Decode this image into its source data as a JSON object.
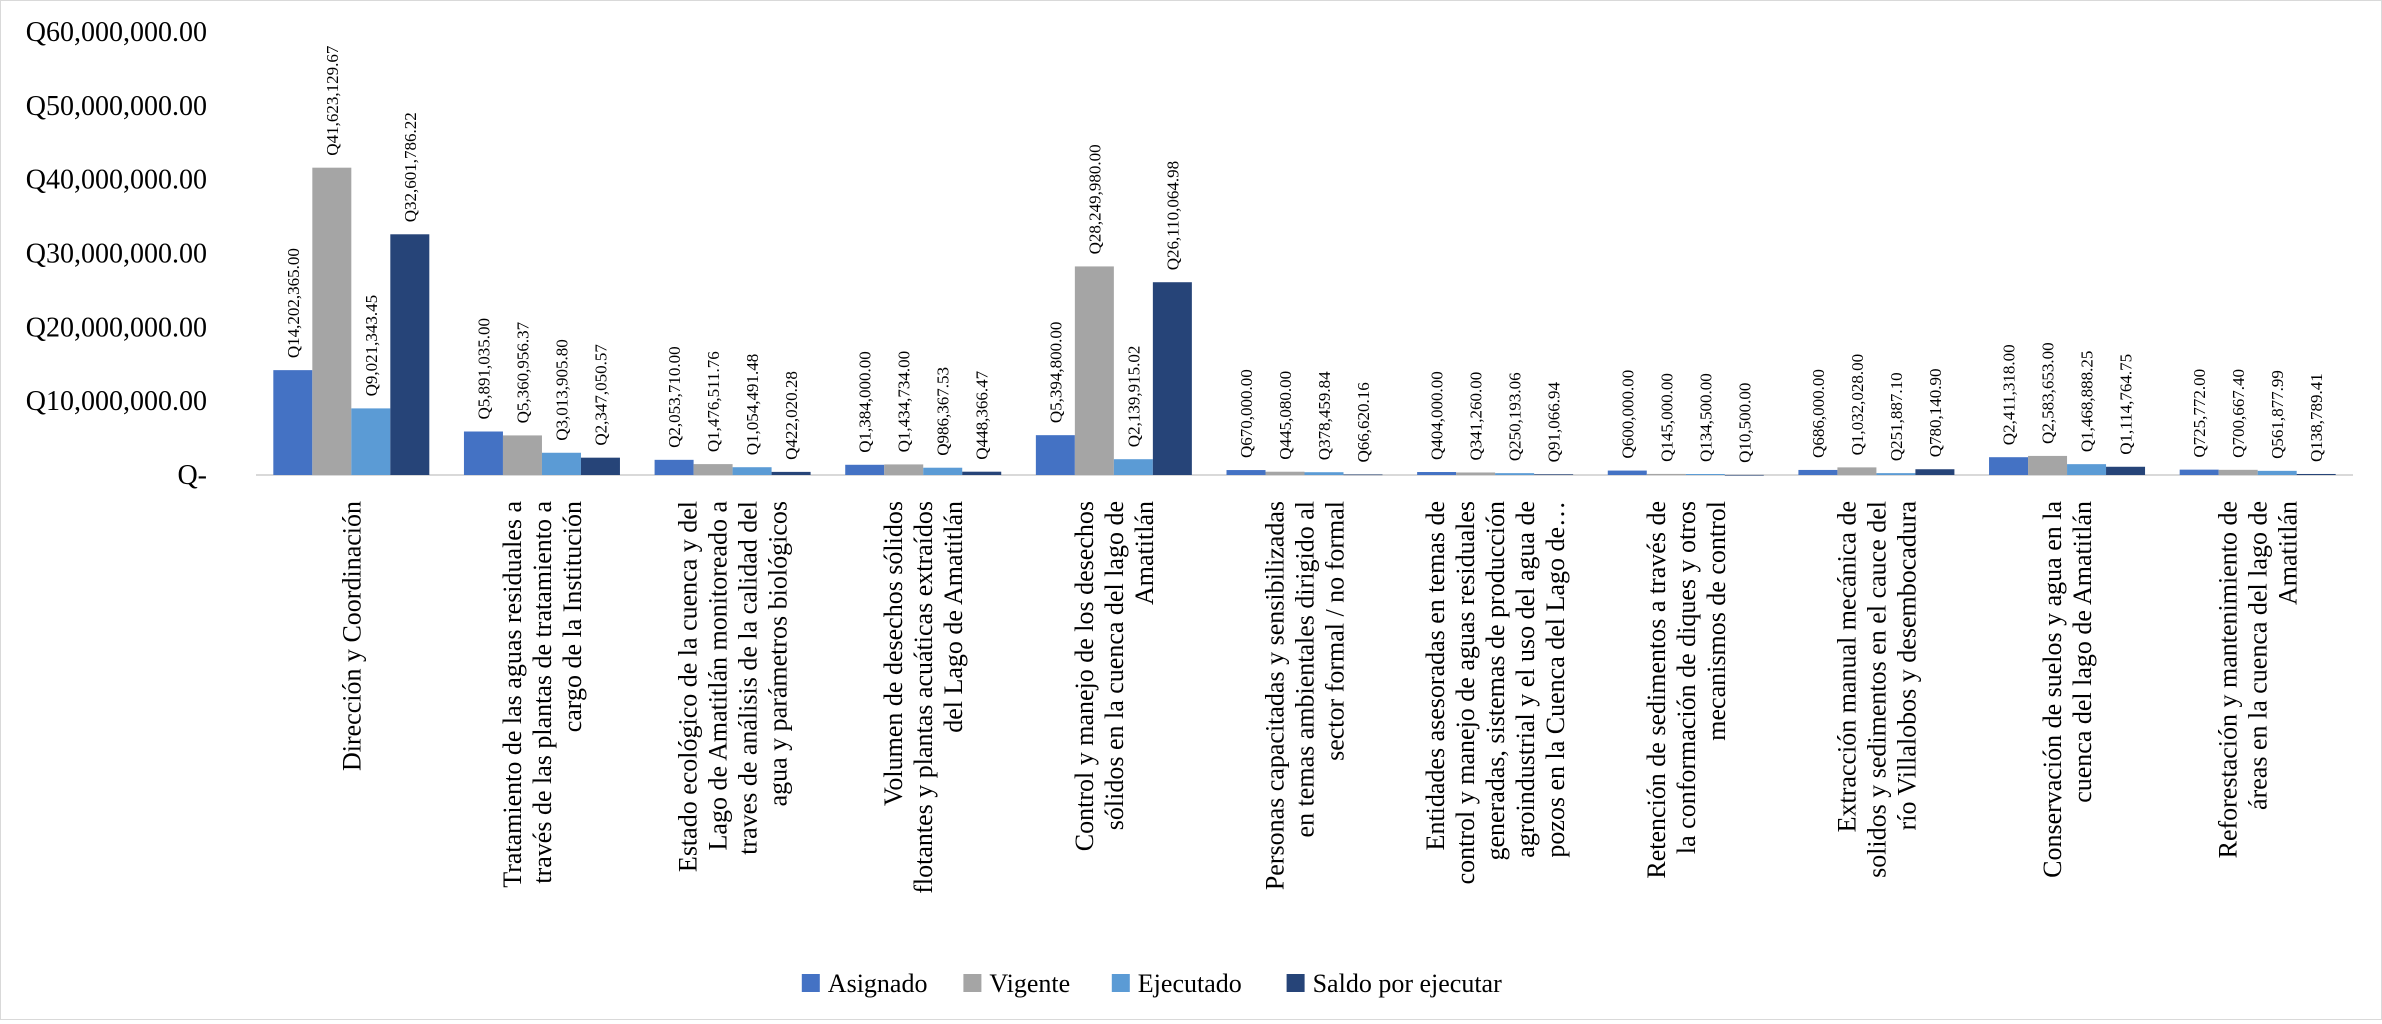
{
  "chart_data": {
    "type": "bar",
    "title": "",
    "xlabel": "",
    "ylabel": "",
    "ylim": [
      0,
      60000000
    ],
    "y_ticks": [
      0,
      10000000,
      20000000,
      30000000,
      40000000,
      50000000,
      60000000
    ],
    "y_tick_labels": [
      "Q-",
      "Q10,000,000.00",
      "Q20,000,000.00",
      "Q30,000,000.00",
      "Q40,000,000.00",
      "Q50,000,000.00",
      "Q60,000,000.00"
    ],
    "grid": false,
    "legend_position": "bottom-center",
    "categories": [
      [
        "Dirección y Coordinación"
      ],
      [
        "Tratamiento de las aguas residuales a",
        "través de las plantas de tratamiento a",
        "cargo de la Institución"
      ],
      [
        "Estado ecológico de la cuenca y del",
        "Lago de Amatitlán monitoreado a",
        "traves de análisis de la calidad del",
        "agua y parámetros biológicos"
      ],
      [
        "Volumen de desechos sólidos",
        "flotantes y plantas acuáticas extraídos",
        "del Lago de Amatitlán"
      ],
      [
        "Control y manejo de los desechos",
        "sólidos en la cuenca del lago de",
        "Amatitlán"
      ],
      [
        "Personas capacitadas y sensibilizadas",
        "en temas ambientales dirigido al",
        "sector formal / no formal"
      ],
      [
        "Entidades asesoradas en temas de",
        "control y manejo de aguas residuales",
        "generadas, sistemas de producción",
        "agroindustrial y el uso del agua de",
        "pozos en la Cuenca del Lago de…"
      ],
      [
        "Retención de sedimentos a través de",
        "la conformación de diques y otros",
        "mecanismos de control"
      ],
      [
        "Extracción manual  mecánica de",
        "solidos y sedimentos en el cauce del",
        "río Villalobos y desembocadura"
      ],
      [
        "Conservación de suelos y agua en la",
        "cuenca del lago de Amatitlán"
      ],
      [
        "Reforestación y mantenimiento de",
        "áreas en la cuenca del lago de",
        "Amatitlán"
      ]
    ],
    "series": [
      {
        "name": "Asignado",
        "color": "#4472c4",
        "values": [
          14202365.0,
          5891035.0,
          2053710.0,
          1384000.0,
          5394800.0,
          670000.0,
          404000.0,
          600000.0,
          686000.0,
          2411318.0,
          725772.0
        ],
        "labels": [
          "Q14,202,365.00",
          "Q5,891,035.00",
          "Q2,053,710.00",
          "Q1,384,000.00",
          "Q5,394,800.00",
          "Q670,000.00",
          "Q404,000.00",
          "Q600,000.00",
          "Q686,000.00",
          "Q2,411,318.00",
          "Q725,772.00"
        ]
      },
      {
        "name": "Vigente",
        "color": "#a5a5a5",
        "values": [
          41623129.67,
          5360956.37,
          1476511.76,
          1434734.0,
          28249980.0,
          445080.0,
          341260.0,
          145000.0,
          1032028.0,
          2583653.0,
          700667.4
        ],
        "labels": [
          "Q41,623,129.67",
          "Q5,360,956.37",
          "Q1,476,511.76",
          "Q1,434,734.00",
          "Q28,249,980.00",
          "Q445,080.00",
          "Q341,260.00",
          "Q145,000.00",
          "Q1,032,028.00",
          "Q2,583,653.00",
          "Q700,667.40"
        ]
      },
      {
        "name": "Ejecutado",
        "color": "#5b9bd5",
        "values": [
          9021343.45,
          3013905.8,
          1054491.48,
          986367.53,
          2139915.02,
          378459.84,
          250193.06,
          134500.0,
          251887.1,
          1468888.25,
          561877.99
        ],
        "labels": [
          "Q9,021,343.45",
          "Q3,013,905.80",
          "Q1,054,491.48",
          "Q986,367.53",
          "Q2,139,915.02",
          "Q378,459.84",
          "Q250,193.06",
          "Q134,500.00",
          "Q251,887.10",
          "Q1,468,888.25",
          "Q561,877.99"
        ]
      },
      {
        "name": "Saldo por ejecutar",
        "color": "#264478",
        "values": [
          32601786.22,
          2347050.57,
          422020.28,
          448366.47,
          26110064.98,
          66620.16,
          91066.94,
          10500.0,
          780140.9,
          1114764.75,
          138789.41
        ],
        "labels": [
          "Q32,601,786.22",
          "Q2,347,050.57",
          "Q422,020.28",
          "Q448,366.47",
          "Q26,110,064.98",
          "Q66,620.16",
          "Q91,066.94",
          "Q10,500.00",
          "Q780,140.90",
          "Q1,114,764.75",
          "Q138,789.41"
        ]
      }
    ]
  }
}
